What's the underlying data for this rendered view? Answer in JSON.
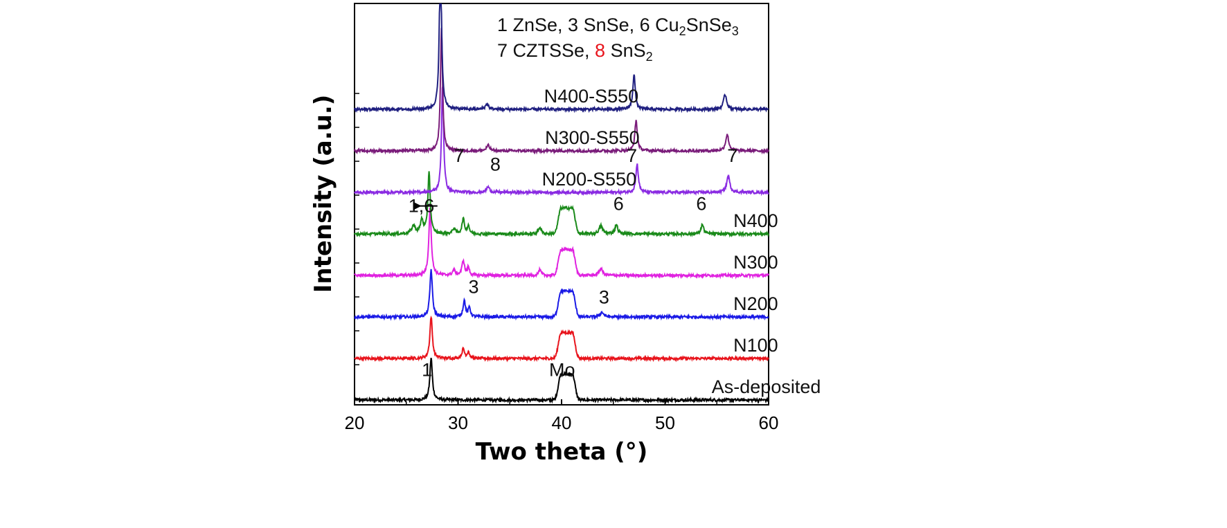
{
  "chart_data": {
    "type": "line",
    "title": "",
    "xlabel": "Two theta (°)",
    "ylabel": "Intensity (a.u.)",
    "xlim": [
      20,
      60
    ],
    "x_ticks": [
      20,
      30,
      40,
      50,
      60
    ],
    "x_tick_labels": [
      "20",
      "30",
      "40",
      "50",
      "60"
    ],
    "grid": false,
    "y_tick_labels_shown": false,
    "legend": {
      "placement": "top-right",
      "lines": [
        [
          {
            "text": "1 ZnSe, 3 SnSe, 6 Cu"
          },
          {
            "text": "2",
            "sub": true
          },
          {
            "text": "SnSe"
          },
          {
            "text": "3",
            "sub": true
          }
        ],
        [
          {
            "text": "7 CZTSSe, "
          },
          {
            "text": "8",
            "color": "#e8141c"
          },
          {
            "text": " SnS"
          },
          {
            "text": "2",
            "sub": true
          }
        ]
      ]
    },
    "series": [
      {
        "name": "As-deposited",
        "color": "#000000",
        "baseline": 0.0,
        "peaks": [
          {
            "x": 27.4,
            "h": 0.62,
            "w": 0.14
          },
          {
            "x": 40.5,
            "h": 0.38,
            "w": 0.35,
            "flat": true
          }
        ]
      },
      {
        "name": "N100",
        "color": "#e8141c",
        "baseline": 1.0,
        "peaks": [
          {
            "x": 27.4,
            "h": 0.62,
            "w": 0.14
          },
          {
            "x": 30.5,
            "h": 0.14,
            "w": 0.15
          },
          {
            "x": 31.0,
            "h": 0.1,
            "w": 0.12
          },
          {
            "x": 40.5,
            "h": 0.38,
            "w": 0.35,
            "flat": true
          }
        ]
      },
      {
        "name": "N200",
        "color": "#1a1ae6",
        "baseline": 2.0,
        "peaks": [
          {
            "x": 27.4,
            "h": 0.7,
            "w": 0.14
          },
          {
            "x": 30.6,
            "h": 0.24,
            "w": 0.14
          },
          {
            "x": 31.1,
            "h": 0.14,
            "w": 0.12
          },
          {
            "x": 40.5,
            "h": 0.38,
            "w": 0.35,
            "flat": true
          },
          {
            "x": 43.9,
            "h": 0.07,
            "w": 0.2
          }
        ]
      },
      {
        "name": "N300",
        "color": "#e022e0",
        "baseline": 3.0,
        "peaks": [
          {
            "x": 27.3,
            "h": 1.0,
            "w": 0.14
          },
          {
            "x": 29.6,
            "h": 0.08,
            "w": 0.15
          },
          {
            "x": 30.5,
            "h": 0.22,
            "w": 0.14
          },
          {
            "x": 31.0,
            "h": 0.12,
            "w": 0.12
          },
          {
            "x": 37.9,
            "h": 0.08,
            "w": 0.15
          },
          {
            "x": 40.5,
            "h": 0.38,
            "w": 0.35,
            "flat": true
          },
          {
            "x": 43.8,
            "h": 0.1,
            "w": 0.2
          }
        ]
      },
      {
        "name": "N400",
        "color": "#1a8a1a",
        "baseline": 4.0,
        "peaks": [
          {
            "x": 25.7,
            "h": 0.12,
            "w": 0.2
          },
          {
            "x": 26.5,
            "h": 0.2,
            "w": 0.16
          },
          {
            "x": 27.2,
            "h": 0.92,
            "w": 0.13
          },
          {
            "x": 29.6,
            "h": 0.08,
            "w": 0.15
          },
          {
            "x": 30.5,
            "h": 0.22,
            "w": 0.14
          },
          {
            "x": 31.0,
            "h": 0.12,
            "w": 0.12
          },
          {
            "x": 37.9,
            "h": 0.1,
            "w": 0.15
          },
          {
            "x": 40.5,
            "h": 0.38,
            "w": 0.35,
            "flat": true
          },
          {
            "x": 43.8,
            "h": 0.12,
            "w": 0.2
          },
          {
            "x": 45.3,
            "h": 0.14,
            "w": 0.15
          },
          {
            "x": 53.6,
            "h": 0.14,
            "w": 0.15
          }
        ]
      },
      {
        "name": "N200-S550",
        "color": "#8a2be2",
        "baseline": 5.0,
        "peaks": [
          {
            "x": 28.5,
            "h": 1.6,
            "w": 0.12
          },
          {
            "x": 32.9,
            "h": 0.08,
            "w": 0.18
          },
          {
            "x": 47.3,
            "h": 0.42,
            "w": 0.14
          },
          {
            "x": 56.1,
            "h": 0.24,
            "w": 0.18
          }
        ]
      },
      {
        "name": "N300-S550",
        "color": "#7a1c7a",
        "baseline": 6.0,
        "peaks": [
          {
            "x": 28.4,
            "h": 1.8,
            "w": 0.12
          },
          {
            "x": 32.9,
            "h": 0.08,
            "w": 0.18
          },
          {
            "x": 47.2,
            "h": 0.45,
            "w": 0.14
          },
          {
            "x": 56.0,
            "h": 0.24,
            "w": 0.18
          }
        ]
      },
      {
        "name": "N400-S550",
        "color": "#1f1f80",
        "baseline": 7.0,
        "peaks": [
          {
            "x": 28.3,
            "h": 2.4,
            "w": 0.12
          },
          {
            "x": 32.8,
            "h": 0.08,
            "w": 0.18
          },
          {
            "x": 47.0,
            "h": 0.52,
            "w": 0.14
          },
          {
            "x": 55.8,
            "h": 0.22,
            "w": 0.18
          }
        ]
      }
    ],
    "annotations": [
      {
        "text": "1",
        "x": 26.5,
        "series": "As-deposited",
        "level": 0.35
      },
      {
        "text": "Mo",
        "x": 38.8,
        "series": "As-deposited",
        "level": 0.35
      },
      {
        "text": "3",
        "x": 31.0,
        "series": "N200",
        "level": 0.35
      },
      {
        "text": "3",
        "x": 43.6,
        "series": "N200",
        "level": 0.2
      },
      {
        "text": "1,6",
        "x": 25.2,
        "series": "N400",
        "level": 0.32,
        "arrow_to": 27.0
      },
      {
        "text": "6",
        "x": 45.0,
        "series": "N400",
        "level": 0.35
      },
      {
        "text": "6",
        "x": 53.0,
        "series": "N400",
        "level": 0.35
      },
      {
        "text": "7",
        "x": 29.6,
        "series": "N200-S550",
        "level": 0.45
      },
      {
        "text": "8",
        "x": 33.1,
        "series": "N200-S550",
        "level": 0.32,
        "color": "#e8141c"
      },
      {
        "text": "7",
        "x": 46.3,
        "series": "N200-S550",
        "level": 0.45
      },
      {
        "text": "7",
        "x": 56.0,
        "series": "N200-S550",
        "level": 0.45
      }
    ],
    "series_label_x": {
      "As-deposited": 54.5,
      "N100": 56.6,
      "N200": 56.6,
      "N300": 56.6,
      "N400": 56.6,
      "N200-S550": 38.1,
      "N300-S550": 38.4,
      "N400-S550": 38.3
    }
  }
}
